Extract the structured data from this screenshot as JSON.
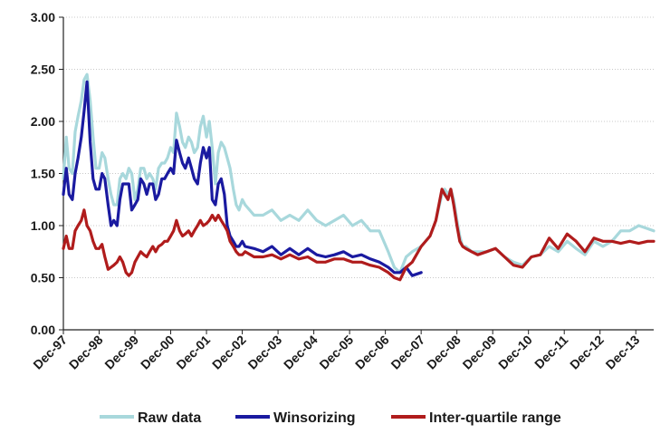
{
  "chart_data": {
    "type": "line",
    "title": "",
    "xlabel": "",
    "ylabel": "",
    "ylim": [
      0,
      3
    ],
    "yticks": [
      "0.00",
      "0.50",
      "1.00",
      "1.50",
      "2.00",
      "2.50",
      "3.00"
    ],
    "xticks": [
      "Dec-97",
      "Dec-98",
      "Dec-99",
      "Dec-00",
      "Dec-01",
      "Dec-02",
      "Dec-03",
      "Dec-04",
      "Dec-05",
      "Dec-06",
      "Dec-07",
      "Dec-08",
      "Dec-09",
      "Dec-10",
      "Dec-11",
      "Dec-12",
      "Dec-13"
    ],
    "x_range_years": [
      1997.92,
      2014.42
    ],
    "grid": "horizontal dotted",
    "legend_position": "bottom",
    "series": [
      {
        "name": "Raw data",
        "color": "#a8d8dc",
        "x": [
          1997.92,
          1998.0,
          1998.08,
          1998.17,
          1998.25,
          1998.33,
          1998.42,
          1998.5,
          1998.58,
          1998.67,
          1998.75,
          1998.83,
          1998.92,
          1999.0,
          1999.08,
          1999.17,
          1999.25,
          1999.33,
          1999.42,
          1999.5,
          1999.58,
          1999.67,
          1999.75,
          1999.83,
          1999.92,
          2000.0,
          2000.08,
          2000.17,
          2000.25,
          2000.33,
          2000.42,
          2000.5,
          2000.58,
          2000.67,
          2000.75,
          2000.83,
          2000.92,
          2001.0,
          2001.08,
          2001.17,
          2001.25,
          2001.33,
          2001.42,
          2001.5,
          2001.58,
          2001.67,
          2001.75,
          2001.83,
          2001.92,
          2002.0,
          2002.08,
          2002.17,
          2002.25,
          2002.33,
          2002.42,
          2002.5,
          2002.58,
          2002.67,
          2002.75,
          2002.83,
          2002.92,
          2003.0,
          2003.25,
          2003.5,
          2003.75,
          2004.0,
          2004.25,
          2004.5,
          2004.75,
          2005.0,
          2005.25,
          2005.5,
          2005.75,
          2006.0,
          2006.25,
          2006.5,
          2006.75,
          2007.0,
          2007.17,
          2007.33,
          2007.5,
          2007.67,
          2007.92,
          2008.17,
          2008.33,
          2008.5,
          2008.58,
          2008.67,
          2008.75,
          2008.83,
          2008.92,
          2009.0,
          2009.08,
          2009.17,
          2009.33,
          2009.5,
          2009.75,
          2010.0,
          2010.25,
          2010.5,
          2010.75,
          2011.0,
          2011.25,
          2011.5,
          2011.75,
          2012.0,
          2012.25,
          2012.5,
          2012.75,
          2013.0,
          2013.25,
          2013.5,
          2013.75,
          2014.0,
          2014.25,
          2014.42
        ],
        "y": [
          1.45,
          1.85,
          1.55,
          1.5,
          1.9,
          2.05,
          2.2,
          2.4,
          2.45,
          2.2,
          1.85,
          1.55,
          1.55,
          1.7,
          1.65,
          1.45,
          1.3,
          1.2,
          1.2,
          1.45,
          1.5,
          1.45,
          1.55,
          1.5,
          1.25,
          1.35,
          1.55,
          1.55,
          1.45,
          1.5,
          1.45,
          1.35,
          1.55,
          1.6,
          1.6,
          1.65,
          1.75,
          1.7,
          2.08,
          1.95,
          1.8,
          1.75,
          1.85,
          1.8,
          1.7,
          1.75,
          1.95,
          2.05,
          1.85,
          2.0,
          1.75,
          1.4,
          1.7,
          1.8,
          1.75,
          1.65,
          1.55,
          1.35,
          1.2,
          1.15,
          1.25,
          1.2,
          1.1,
          1.1,
          1.15,
          1.05,
          1.1,
          1.05,
          1.15,
          1.05,
          1.0,
          1.05,
          1.1,
          1.0,
          1.05,
          0.95,
          0.95,
          0.75,
          0.6,
          0.55,
          0.7,
          0.75,
          0.8,
          0.9,
          1.05,
          1.3,
          1.35,
          1.3,
          1.35,
          1.25,
          1.05,
          0.9,
          0.8,
          0.8,
          0.75,
          0.75,
          0.75,
          0.78,
          0.7,
          0.65,
          0.62,
          0.7,
          0.72,
          0.8,
          0.75,
          0.85,
          0.78,
          0.72,
          0.85,
          0.8,
          0.85,
          0.95,
          0.95,
          1.0,
          0.97,
          0.95
        ]
      },
      {
        "name": "Winsorizing",
        "color": "#1a1aa0",
        "x": [
          1997.92,
          1998.0,
          1998.08,
          1998.17,
          1998.25,
          1998.33,
          1998.42,
          1998.5,
          1998.58,
          1998.67,
          1998.75,
          1998.83,
          1998.92,
          1999.0,
          1999.08,
          1999.17,
          1999.25,
          1999.33,
          1999.42,
          1999.5,
          1999.58,
          1999.67,
          1999.75,
          1999.83,
          1999.92,
          2000.0,
          2000.08,
          2000.17,
          2000.25,
          2000.33,
          2000.42,
          2000.5,
          2000.58,
          2000.67,
          2000.75,
          2000.83,
          2000.92,
          2001.0,
          2001.08,
          2001.17,
          2001.25,
          2001.33,
          2001.42,
          2001.5,
          2001.58,
          2001.67,
          2001.75,
          2001.83,
          2001.92,
          2002.0,
          2002.08,
          2002.17,
          2002.25,
          2002.33,
          2002.42,
          2002.5,
          2002.58,
          2002.67,
          2002.75,
          2002.83,
          2002.92,
          2003.0,
          2003.25,
          2003.5,
          2003.75,
          2004.0,
          2004.25,
          2004.5,
          2004.75,
          2005.0,
          2005.25,
          2005.5,
          2005.75,
          2006.0,
          2006.25,
          2006.5,
          2006.75,
          2007.0,
          2007.17,
          2007.33,
          2007.5,
          2007.67,
          2007.92
        ],
        "y": [
          1.3,
          1.55,
          1.3,
          1.25,
          1.5,
          1.65,
          1.85,
          2.1,
          2.38,
          1.8,
          1.45,
          1.35,
          1.35,
          1.5,
          1.45,
          1.2,
          1.0,
          1.05,
          1.0,
          1.25,
          1.4,
          1.4,
          1.4,
          1.15,
          1.2,
          1.25,
          1.45,
          1.4,
          1.3,
          1.4,
          1.4,
          1.25,
          1.3,
          1.45,
          1.45,
          1.5,
          1.55,
          1.5,
          1.82,
          1.7,
          1.6,
          1.55,
          1.65,
          1.55,
          1.45,
          1.4,
          1.6,
          1.75,
          1.65,
          1.75,
          1.25,
          1.2,
          1.4,
          1.45,
          1.3,
          1.0,
          0.9,
          0.85,
          0.8,
          0.8,
          0.85,
          0.8,
          0.78,
          0.75,
          0.8,
          0.72,
          0.78,
          0.72,
          0.78,
          0.72,
          0.7,
          0.72,
          0.75,
          0.7,
          0.72,
          0.68,
          0.65,
          0.6,
          0.55,
          0.55,
          0.6,
          0.52,
          0.55
        ]
      },
      {
        "name": "Inter-quartile range",
        "color": "#b01c1c",
        "x": [
          1997.92,
          1998.0,
          1998.08,
          1998.17,
          1998.25,
          1998.33,
          1998.42,
          1998.5,
          1998.58,
          1998.67,
          1998.75,
          1998.83,
          1998.92,
          1999.0,
          1999.08,
          1999.17,
          1999.25,
          1999.33,
          1999.42,
          1999.5,
          1999.58,
          1999.67,
          1999.75,
          1999.83,
          1999.92,
          2000.0,
          2000.08,
          2000.17,
          2000.25,
          2000.33,
          2000.42,
          2000.5,
          2000.58,
          2000.67,
          2000.75,
          2000.83,
          2000.92,
          2001.0,
          2001.08,
          2001.17,
          2001.25,
          2001.33,
          2001.42,
          2001.5,
          2001.58,
          2001.67,
          2001.75,
          2001.83,
          2001.92,
          2002.0,
          2002.08,
          2002.17,
          2002.25,
          2002.33,
          2002.42,
          2002.5,
          2002.58,
          2002.67,
          2002.75,
          2002.83,
          2002.92,
          2003.0,
          2003.25,
          2003.5,
          2003.75,
          2004.0,
          2004.25,
          2004.5,
          2004.75,
          2005.0,
          2005.25,
          2005.5,
          2005.75,
          2006.0,
          2006.25,
          2006.5,
          2006.75,
          2007.0,
          2007.17,
          2007.33,
          2007.5,
          2007.67,
          2007.92,
          2008.17,
          2008.33,
          2008.5,
          2008.58,
          2008.67,
          2008.75,
          2008.83,
          2008.92,
          2009.0,
          2009.08,
          2009.17,
          2009.33,
          2009.5,
          2009.75,
          2010.0,
          2010.25,
          2010.5,
          2010.75,
          2011.0,
          2011.25,
          2011.5,
          2011.75,
          2012.0,
          2012.25,
          2012.5,
          2012.75,
          2013.0,
          2013.25,
          2013.5,
          2013.75,
          2014.0,
          2014.25,
          2014.42
        ],
        "y": [
          0.78,
          0.9,
          0.78,
          0.78,
          0.95,
          1.0,
          1.05,
          1.15,
          1.0,
          0.95,
          0.85,
          0.78,
          0.78,
          0.82,
          0.7,
          0.58,
          0.6,
          0.62,
          0.65,
          0.7,
          0.65,
          0.55,
          0.52,
          0.55,
          0.65,
          0.7,
          0.75,
          0.72,
          0.7,
          0.75,
          0.8,
          0.75,
          0.8,
          0.82,
          0.85,
          0.85,
          0.9,
          0.95,
          1.05,
          0.95,
          0.9,
          0.92,
          0.95,
          0.9,
          0.95,
          1.0,
          1.05,
          1.0,
          1.02,
          1.05,
          1.1,
          1.05,
          1.1,
          1.05,
          1.0,
          0.95,
          0.85,
          0.8,
          0.75,
          0.72,
          0.72,
          0.75,
          0.7,
          0.7,
          0.72,
          0.68,
          0.72,
          0.68,
          0.7,
          0.65,
          0.65,
          0.68,
          0.68,
          0.65,
          0.65,
          0.62,
          0.6,
          0.55,
          0.5,
          0.48,
          0.6,
          0.65,
          0.8,
          0.9,
          1.05,
          1.35,
          1.3,
          1.25,
          1.35,
          1.2,
          1.0,
          0.85,
          0.8,
          0.78,
          0.75,
          0.72,
          0.75,
          0.78,
          0.7,
          0.62,
          0.6,
          0.7,
          0.72,
          0.88,
          0.78,
          0.92,
          0.85,
          0.75,
          0.88,
          0.85,
          0.85,
          0.83,
          0.85,
          0.83,
          0.85,
          0.85
        ]
      }
    ]
  }
}
